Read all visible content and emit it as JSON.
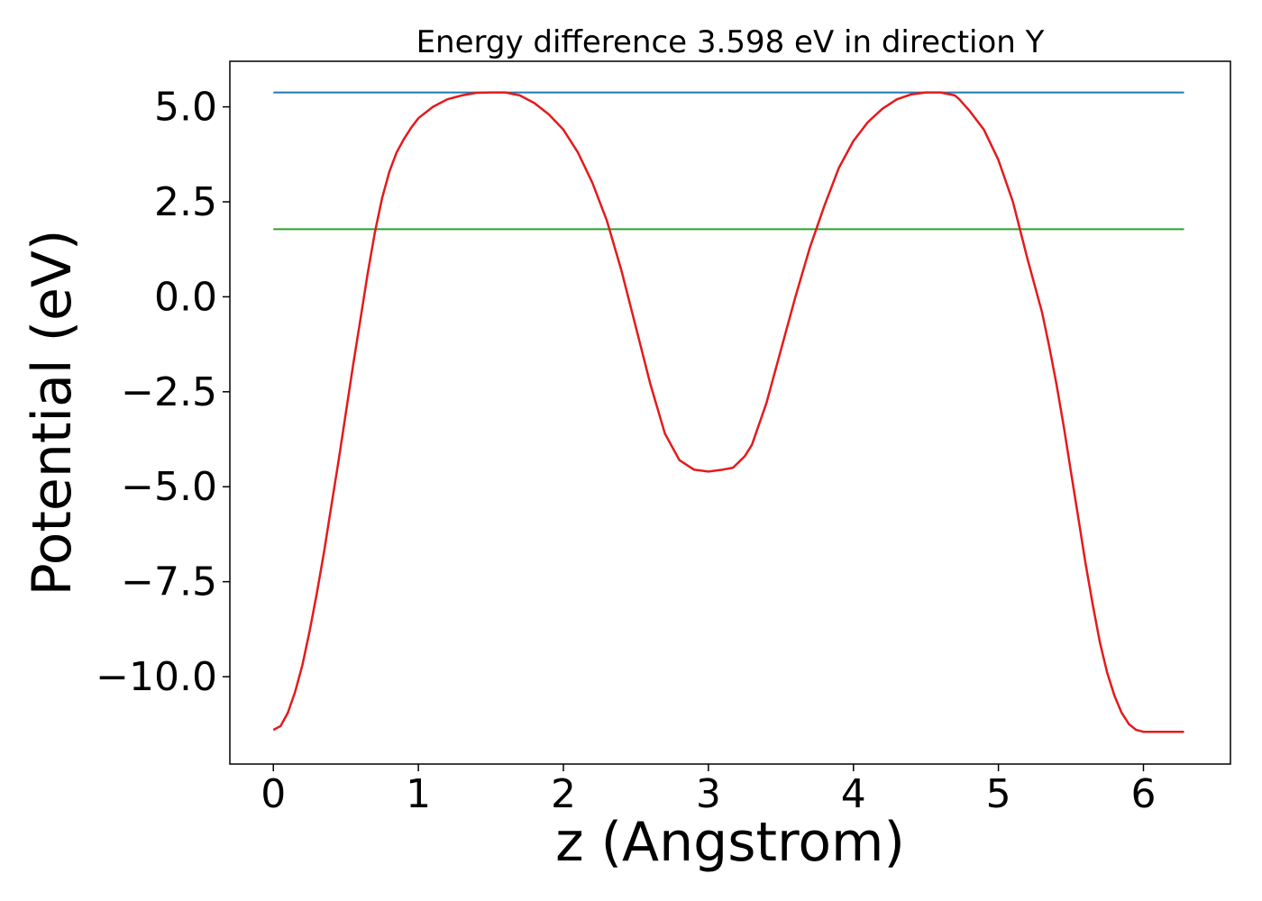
{
  "chart_data": {
    "type": "line",
    "title": "Energy difference 3.598 eV in direction Y",
    "xlabel": "z (Angstrom)",
    "ylabel": "Potential (eV)",
    "xlim": [
      -0.3,
      6.6
    ],
    "ylim": [
      -12.3,
      6.2
    ],
    "x_ticks": [
      0,
      1,
      2,
      3,
      4,
      5,
      6
    ],
    "x_tick_labels": [
      "0",
      "1",
      "2",
      "3",
      "4",
      "5",
      "6"
    ],
    "y_ticks": [
      5.0,
      2.5,
      0.0,
      -2.5,
      -5.0,
      -7.5,
      -10.0
    ],
    "y_tick_labels": [
      "5.0",
      "2.5",
      "0.0",
      "−2.5",
      "−5.0",
      "−7.5",
      "−10.0"
    ],
    "grid": false,
    "legend": "none",
    "series": [
      {
        "color": "#1f77b4",
        "x": [
          0.0,
          6.28
        ],
        "y": [
          5.38,
          5.38
        ]
      },
      {
        "color": "#2ca02c",
        "x": [
          0.0,
          6.28
        ],
        "y": [
          1.78,
          1.78
        ]
      },
      {
        "color": "#e41a1c",
        "x": [
          0.0,
          0.05,
          0.1,
          0.15,
          0.2,
          0.25,
          0.3,
          0.35,
          0.4,
          0.45,
          0.5,
          0.55,
          0.6,
          0.65,
          0.7,
          0.75,
          0.8,
          0.85,
          0.9,
          0.95,
          1.0,
          1.05,
          1.1,
          1.15,
          1.2,
          1.3,
          1.4,
          1.5,
          1.6,
          1.7,
          1.8,
          1.9,
          2.0,
          2.1,
          2.2,
          2.3,
          2.4,
          2.5,
          2.6,
          2.7,
          2.8,
          2.9,
          3.0,
          3.1,
          3.17,
          3.25,
          3.3,
          3.4,
          3.5,
          3.6,
          3.7,
          3.8,
          3.9,
          4.0,
          4.1,
          4.2,
          4.3,
          4.4,
          4.5,
          4.6,
          4.7,
          4.73,
          4.8,
          4.9,
          5.0,
          5.1,
          5.2,
          5.3,
          5.35,
          5.4,
          5.45,
          5.5,
          5.55,
          5.6,
          5.65,
          5.7,
          5.75,
          5.8,
          5.85,
          5.9,
          5.95,
          6.0,
          6.05,
          6.1,
          6.15,
          6.2,
          6.25,
          6.28
        ],
        "y": [
          -11.4,
          -11.3,
          -10.95,
          -10.4,
          -9.7,
          -8.8,
          -7.8,
          -6.7,
          -5.5,
          -4.3,
          -3.05,
          -1.8,
          -0.6,
          0.6,
          1.7,
          2.6,
          3.3,
          3.8,
          4.15,
          4.45,
          4.7,
          4.85,
          5.0,
          5.1,
          5.2,
          5.3,
          5.37,
          5.38,
          5.38,
          5.3,
          5.1,
          4.8,
          4.4,
          3.8,
          3.0,
          2.0,
          0.7,
          -0.8,
          -2.3,
          -3.6,
          -4.3,
          -4.55,
          -4.6,
          -4.55,
          -4.5,
          -4.2,
          -3.9,
          -2.8,
          -1.4,
          0.0,
          1.3,
          2.4,
          3.4,
          4.1,
          4.6,
          4.95,
          5.2,
          5.33,
          5.38,
          5.38,
          5.3,
          5.2,
          4.9,
          4.4,
          3.6,
          2.5,
          1.0,
          -0.4,
          -1.3,
          -2.3,
          -3.4,
          -4.6,
          -5.8,
          -7.0,
          -8.1,
          -9.1,
          -9.9,
          -10.5,
          -10.95,
          -11.25,
          -11.4,
          -11.45,
          -11.45,
          -11.45,
          -11.45,
          -11.45,
          -11.45,
          -11.45
        ]
      }
    ]
  }
}
